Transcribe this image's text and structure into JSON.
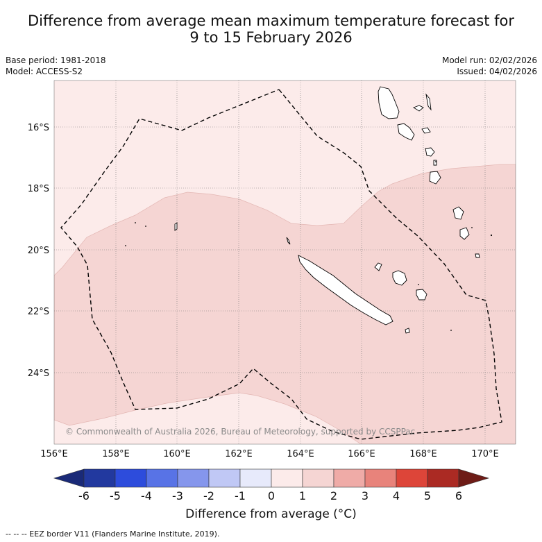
{
  "title": {
    "line1": "Difference from average mean maximum temperature forecast for",
    "line2": "9 to 15 February 2026"
  },
  "meta": {
    "base_period": "Base period: 1981-2018",
    "model": "Model: ACCESS-S2",
    "model_run": "Model run: 02/02/2026",
    "issued": "Issued: 04/02/2026"
  },
  "map": {
    "lon_ticks": [
      "156°E",
      "158°E",
      "160°E",
      "162°E",
      "164°E",
      "166°E",
      "168°E",
      "170°E"
    ],
    "lat_ticks": [
      "16°S",
      "18°S",
      "20°S",
      "22°S",
      "24°S"
    ],
    "copyright": "© Commonwealth of Australia 2026, Bureau of Meteorology, supported by CCSPPac",
    "region_colors": {
      "zero_to_one": "#fcebea",
      "one_to_two": "#f5d5d3"
    },
    "eez_color": "#000000"
  },
  "colorbar": {
    "ticks": [
      "-6",
      "-5",
      "-4",
      "-3",
      "-2",
      "-1",
      "0",
      "1",
      "2",
      "3",
      "4",
      "5",
      "6"
    ],
    "colors": [
      "#22399f",
      "#2d4cdc",
      "#5873e6",
      "#8596ec",
      "#c0c8f5",
      "#e7eafb",
      "#fcebea",
      "#f5d5d3",
      "#efaba7",
      "#e8837b",
      "#dd4539",
      "#ab2a23"
    ],
    "under_color": "#1a2a78",
    "over_color": "#6e1c17",
    "label": "Difference from average (°C)"
  },
  "footer": {
    "eez_legend": "--  --  -- EEZ border V11 (Flanders Marine Institute, 2019)."
  }
}
